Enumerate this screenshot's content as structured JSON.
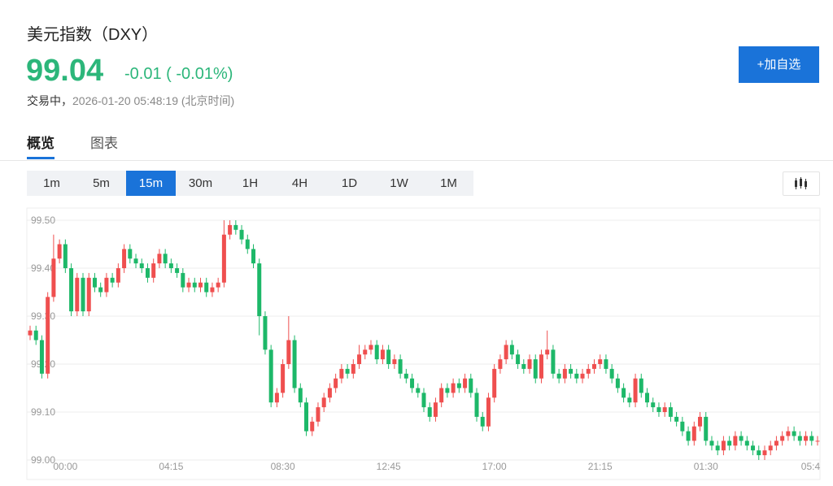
{
  "header": {
    "title": "美元指数（DXY）",
    "price": "99.04",
    "change": "-0.01",
    "change_pct": "( -0.01%)",
    "status": "交易中，",
    "time": "2026-01-20 05:48:19",
    "timezone": "(北京时间)",
    "button": "+加自选"
  },
  "tabs": {
    "items": [
      "概览",
      "图表"
    ],
    "active": 0
  },
  "intervals": {
    "items": [
      "1m",
      "5m",
      "15m",
      "30m",
      "1H",
      "4H",
      "1D",
      "1W",
      "1M"
    ],
    "active": 2
  },
  "chart_data": {
    "type": "candlestick",
    "categories": [
      null,
      null,
      null,
      null,
      null,
      null,
      "00:00",
      null,
      null,
      null,
      null,
      null,
      null,
      null,
      null,
      null,
      null,
      null,
      null,
      null,
      null,
      null,
      null,
      null,
      "04:15",
      null,
      null,
      null,
      null,
      null,
      null,
      null,
      null,
      null,
      null,
      null,
      null,
      null,
      null,
      null,
      null,
      null,
      null,
      "08:30",
      null,
      null,
      null,
      null,
      null,
      null,
      null,
      null,
      null,
      null,
      null,
      null,
      null,
      null,
      null,
      null,
      null,
      "12:45",
      null,
      null,
      null,
      null,
      null,
      null,
      null,
      null,
      null,
      null,
      null,
      null,
      null,
      null,
      null,
      null,
      null,
      "17:00",
      null,
      null,
      null,
      null,
      null,
      null,
      null,
      null,
      null,
      null,
      null,
      null,
      null,
      null,
      null,
      null,
      null,
      "21:15",
      null,
      null,
      null,
      null,
      null,
      null,
      null,
      null,
      null,
      null,
      null,
      null,
      null,
      null,
      null,
      null,
      null,
      "01:30",
      null,
      null,
      null,
      null,
      null,
      null,
      null,
      null,
      null,
      null,
      null,
      null,
      null,
      null,
      null,
      null,
      null,
      "05:4",
      null
    ],
    "open": [
      99.26,
      99.27,
      99.25,
      99.18,
      99.34,
      99.42,
      99.45,
      99.4,
      99.31,
      99.38,
      99.31,
      99.38,
      99.36,
      99.35,
      99.38,
      99.37,
      99.4,
      99.44,
      99.42,
      99.41,
      99.4,
      99.38,
      99.41,
      99.43,
      99.41,
      99.4,
      99.39,
      99.36,
      99.37,
      99.36,
      99.37,
      99.35,
      99.36,
      99.37,
      99.47,
      99.49,
      99.48,
      99.46,
      99.44,
      99.41,
      99.3,
      99.23,
      99.12,
      99.14,
      99.2,
      99.25,
      99.15,
      99.12,
      99.06,
      99.08,
      99.11,
      99.13,
      99.15,
      99.17,
      99.19,
      99.18,
      99.2,
      99.22,
      99.23,
      99.24,
      99.21,
      99.23,
      99.2,
      99.21,
      99.18,
      99.17,
      99.15,
      99.14,
      99.11,
      99.09,
      99.12,
      99.15,
      99.14,
      99.16,
      99.15,
      99.17,
      99.14,
      99.09,
      99.07,
      99.13,
      99.19,
      99.21,
      99.24,
      99.22,
      99.2,
      99.19,
      99.21,
      99.17,
      99.22,
      99.23,
      99.18,
      99.17,
      99.19,
      99.18,
      99.17,
      99.18,
      99.19,
      99.2,
      99.21,
      99.19,
      99.17,
      99.15,
      99.13,
      99.12,
      99.17,
      99.14,
      99.12,
      99.11,
      99.1,
      99.11,
      99.09,
      99.08,
      99.06,
      99.04,
      99.07,
      99.09,
      99.04,
      99.03,
      99.02,
      99.04,
      99.03,
      99.05,
      99.04,
      99.03,
      99.02,
      99.01,
      99.02,
      99.03,
      99.04,
      99.05,
      99.06,
      99.05,
      99.04,
      99.05,
      99.04
    ],
    "high": [
      99.28,
      99.28,
      99.26,
      99.35,
      99.47,
      99.46,
      99.46,
      99.41,
      99.39,
      99.39,
      99.39,
      99.39,
      99.37,
      99.39,
      99.39,
      99.41,
      99.45,
      99.45,
      99.43,
      99.42,
      99.41,
      99.42,
      99.44,
      99.44,
      99.42,
      99.41,
      99.4,
      99.38,
      99.38,
      99.38,
      99.38,
      99.37,
      99.38,
      99.5,
      99.5,
      99.5,
      99.49,
      99.47,
      99.45,
      99.42,
      99.31,
      99.24,
      99.15,
      99.21,
      99.3,
      99.26,
      99.16,
      99.13,
      99.09,
      99.12,
      99.14,
      99.16,
      99.18,
      99.2,
      99.2,
      99.21,
      99.24,
      99.24,
      99.25,
      99.25,
      99.24,
      99.24,
      99.22,
      99.22,
      99.19,
      99.18,
      99.16,
      99.15,
      99.12,
      99.13,
      99.16,
      99.16,
      99.17,
      99.17,
      99.18,
      99.18,
      99.15,
      99.1,
      99.14,
      99.2,
      99.22,
      99.25,
      99.25,
      99.23,
      99.21,
      99.22,
      99.22,
      99.23,
      99.27,
      99.24,
      99.19,
      99.2,
      99.2,
      99.19,
      99.19,
      99.2,
      99.21,
      99.22,
      99.22,
      99.2,
      99.18,
      99.16,
      99.14,
      99.18,
      99.18,
      99.15,
      99.13,
      99.12,
      99.12,
      99.12,
      99.1,
      99.09,
      99.07,
      99.08,
      99.1,
      99.1,
      99.05,
      99.04,
      99.05,
      99.05,
      99.06,
      99.06,
      99.05,
      99.04,
      99.03,
      99.03,
      99.04,
      99.05,
      99.06,
      99.07,
      99.07,
      99.06,
      99.06,
      99.06,
      99.05
    ],
    "low": [
      99.25,
      99.24,
      99.17,
      99.17,
      99.33,
      99.41,
      99.39,
      99.3,
      99.3,
      99.3,
      99.3,
      99.35,
      99.34,
      99.34,
      99.36,
      99.36,
      99.39,
      99.41,
      99.4,
      99.39,
      99.37,
      99.37,
      99.4,
      99.4,
      99.39,
      99.38,
      99.35,
      99.35,
      99.35,
      99.35,
      99.34,
      99.34,
      99.35,
      99.36,
      99.46,
      99.47,
      99.45,
      99.43,
      99.4,
      99.26,
      99.22,
      99.11,
      99.11,
      99.13,
      99.19,
      99.14,
      99.11,
      99.05,
      99.05,
      99.07,
      99.1,
      99.12,
      99.14,
      99.16,
      99.17,
      99.17,
      99.19,
      99.21,
      99.22,
      99.2,
      99.2,
      99.19,
      99.19,
      99.17,
      99.16,
      99.14,
      99.13,
      99.1,
      99.08,
      99.08,
      99.11,
      99.13,
      99.13,
      99.14,
      99.14,
      99.13,
      99.08,
      99.06,
      99.06,
      99.12,
      99.18,
      99.2,
      99.21,
      99.19,
      99.18,
      99.18,
      99.16,
      99.16,
      99.21,
      99.17,
      99.16,
      99.16,
      99.17,
      99.16,
      99.16,
      99.17,
      99.18,
      99.19,
      99.18,
      99.16,
      99.14,
      99.12,
      99.11,
      99.11,
      99.13,
      99.11,
      99.1,
      99.09,
      99.09,
      99.08,
      99.07,
      99.05,
      99.03,
      99.03,
      99.06,
      99.03,
      99.02,
      99.01,
      99.01,
      99.02,
      99.02,
      99.03,
      99.02,
      99.01,
      99.0,
      99.0,
      99.01,
      99.02,
      99.03,
      99.04,
      99.04,
      99.03,
      99.03,
      99.03,
      99.03
    ],
    "close": [
      99.27,
      99.25,
      99.18,
      99.34,
      99.42,
      99.45,
      99.4,
      99.31,
      99.38,
      99.31,
      99.38,
      99.36,
      99.35,
      99.38,
      99.37,
      99.4,
      99.44,
      99.42,
      99.41,
      99.4,
      99.38,
      99.41,
      99.43,
      99.41,
      99.4,
      99.39,
      99.36,
      99.37,
      99.36,
      99.37,
      99.35,
      99.36,
      99.37,
      99.47,
      99.49,
      99.48,
      99.46,
      99.44,
      99.41,
      99.3,
      99.23,
      99.12,
      99.14,
      99.2,
      99.25,
      99.15,
      99.12,
      99.06,
      99.08,
      99.11,
      99.13,
      99.15,
      99.17,
      99.19,
      99.18,
      99.2,
      99.22,
      99.23,
      99.24,
      99.21,
      99.23,
      99.2,
      99.21,
      99.18,
      99.17,
      99.15,
      99.14,
      99.11,
      99.09,
      99.12,
      99.15,
      99.14,
      99.16,
      99.15,
      99.17,
      99.14,
      99.09,
      99.07,
      99.13,
      99.19,
      99.21,
      99.24,
      99.22,
      99.2,
      99.19,
      99.21,
      99.17,
      99.22,
      99.23,
      99.18,
      99.17,
      99.19,
      99.18,
      99.17,
      99.18,
      99.19,
      99.2,
      99.21,
      99.19,
      99.17,
      99.15,
      99.13,
      99.12,
      99.17,
      99.14,
      99.12,
      99.11,
      99.1,
      99.11,
      99.09,
      99.08,
      99.06,
      99.04,
      99.07,
      99.09,
      99.04,
      99.03,
      99.02,
      99.04,
      99.03,
      99.05,
      99.04,
      99.03,
      99.02,
      99.01,
      99.02,
      99.03,
      99.04,
      99.05,
      99.06,
      99.05,
      99.04,
      99.05,
      99.04,
      99.04
    ],
    "up_color": "#ef4f4f",
    "down_color": "#1db869",
    "ylim": [
      99.0,
      99.5
    ],
    "yticks": [
      {
        "value": 99.0,
        "label": "99.00"
      },
      {
        "value": 99.1,
        "label": "99.10"
      },
      {
        "value": 99.2,
        "label": "99.20"
      },
      {
        "value": 99.3,
        "label": "99.30"
      },
      {
        "value": 99.4,
        "label": "99.40"
      },
      {
        "value": 99.5,
        "label": "99.50"
      }
    ],
    "grid": true
  }
}
